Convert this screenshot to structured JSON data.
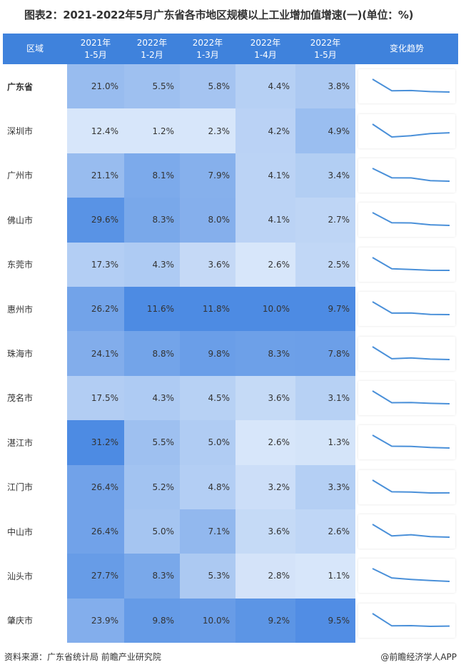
{
  "title": "图表2：2021-2022年5月广东省各市地区规模以上工业增加值增速(一)(单位：%)",
  "footer": {
    "source": "资料来源：广东省统计局 前瞻产业研究院",
    "brand": "@前瞻经济学人APP"
  },
  "colors": {
    "header_bg": "#3f82dc",
    "line": "#4a90d9",
    "heat_low": "#f3f8fe",
    "heat_high": "#3b7fe0"
  },
  "chart_data": {
    "type": "table",
    "title": "图表2：2021-2022年5月广东省各市地区规模以上工业增加值增速(一)(单位：%)",
    "columns": [
      "区域",
      "2021年\n1-5月",
      "2022年\n1-2月",
      "2022年\n1-3月",
      "2022年\n1-4月",
      "2022年\n1-5月",
      "变化趋势"
    ],
    "rows": [
      {
        "region": "广东省",
        "values": [
          "21.0%",
          "5.5%",
          "5.8%",
          "4.4%",
          "3.8%"
        ],
        "nums": [
          21.0,
          5.5,
          5.8,
          4.4,
          3.8
        ]
      },
      {
        "region": "深圳市",
        "values": [
          "12.4%",
          "1.2%",
          "2.3%",
          "4.2%",
          "4.9%"
        ],
        "nums": [
          12.4,
          1.2,
          2.3,
          4.2,
          4.9
        ]
      },
      {
        "region": "广州市",
        "values": [
          "21.1%",
          "8.1%",
          "7.9%",
          "4.1%",
          "3.4%"
        ],
        "nums": [
          21.1,
          8.1,
          7.9,
          4.1,
          3.4
        ]
      },
      {
        "region": "佛山市",
        "values": [
          "29.6%",
          "8.3%",
          "8.0%",
          "4.1%",
          "2.7%"
        ],
        "nums": [
          29.6,
          8.3,
          8.0,
          4.1,
          2.7
        ]
      },
      {
        "region": "东莞市",
        "values": [
          "17.3%",
          "4.3%",
          "3.6%",
          "2.6%",
          "2.5%"
        ],
        "nums": [
          17.3,
          4.3,
          3.6,
          2.6,
          2.5
        ]
      },
      {
        "region": "惠州市",
        "values": [
          "26.2%",
          "11.6%",
          "11.8%",
          "10.0%",
          "9.7%"
        ],
        "nums": [
          26.2,
          11.6,
          11.8,
          10.0,
          9.7
        ]
      },
      {
        "region": "珠海市",
        "values": [
          "24.1%",
          "8.8%",
          "9.8%",
          "8.3%",
          "7.8%"
        ],
        "nums": [
          24.1,
          8.8,
          9.8,
          8.3,
          7.8
        ]
      },
      {
        "region": "茂名市",
        "values": [
          "17.5%",
          "4.3%",
          "4.5%",
          "3.6%",
          "3.1%"
        ],
        "nums": [
          17.5,
          4.3,
          4.5,
          3.6,
          3.1
        ]
      },
      {
        "region": "湛江市",
        "values": [
          "31.2%",
          "5.5%",
          "5.0%",
          "2.6%",
          "1.3%"
        ],
        "nums": [
          31.2,
          5.5,
          5.0,
          2.6,
          1.3
        ]
      },
      {
        "region": "江门市",
        "values": [
          "26.4%",
          "5.2%",
          "4.8%",
          "3.2%",
          "3.3%"
        ],
        "nums": [
          26.4,
          5.2,
          4.8,
          3.2,
          3.3
        ]
      },
      {
        "region": "中山市",
        "values": [
          "26.4%",
          "5.0%",
          "7.1%",
          "3.6%",
          "2.6%"
        ],
        "nums": [
          26.4,
          5.0,
          7.1,
          3.6,
          2.6
        ]
      },
      {
        "region": "汕头市",
        "values": [
          "27.7%",
          "8.3%",
          "5.3%",
          "2.8%",
          "1.1%"
        ],
        "nums": [
          27.7,
          8.3,
          5.3,
          2.8,
          1.1
        ]
      },
      {
        "region": "肇庆市",
        "values": [
          "23.9%",
          "9.8%",
          "10.0%",
          "9.2%",
          "9.5%"
        ],
        "nums": [
          23.9,
          9.8,
          10.0,
          9.2,
          9.5
        ]
      }
    ]
  }
}
